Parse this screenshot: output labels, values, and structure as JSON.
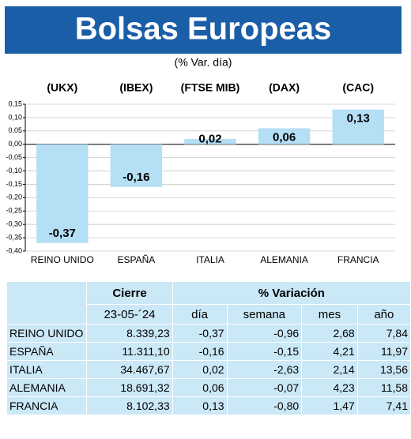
{
  "chart_data": {
    "type": "bar",
    "title": "Bolsas Europeas",
    "subtitle": "(% Var. día)",
    "indices": [
      "(UKX)",
      "(IBEX)",
      "(FTSE MIB)",
      "(DAX)",
      "(CAC)"
    ],
    "categories": [
      "REINO UNIDO",
      "ESPAÑA",
      "ITALIA",
      "ALEMANIA",
      "FRANCIA"
    ],
    "values": [
      -0.37,
      -0.16,
      0.02,
      0.06,
      0.13
    ],
    "value_labels": [
      "-0,37",
      "-0,16",
      "0,02",
      "0,06",
      "0,13"
    ],
    "color": "#b5dff5",
    "ylim": [
      -0.4,
      0.15
    ],
    "yticks": [
      {
        "value": 0.15,
        "label": "0,15"
      },
      {
        "value": 0.1,
        "label": "0,10"
      },
      {
        "value": 0.05,
        "label": "0,05"
      },
      {
        "value": 0,
        "label": "0,00"
      },
      {
        "value": -0.05,
        "label": "-0,05"
      },
      {
        "value": -0.1,
        "label": "-0,10"
      },
      {
        "value": -0.15,
        "label": "-0,15"
      },
      {
        "value": -0.2,
        "label": "-0,20"
      },
      {
        "value": -0.25,
        "label": "-0,25"
      },
      {
        "value": -0.3,
        "label": "-0,30"
      },
      {
        "value": -0.35,
        "label": "-0,35"
      },
      {
        "value": -0.4,
        "label": "-0,40"
      }
    ],
    "grid": true
  },
  "table": {
    "header": [
      "Cierre",
      "% Variación"
    ],
    "subheader": [
      "23-05-´24",
      "día",
      "semana",
      "mes",
      "año"
    ],
    "rows": [
      [
        "REINO UNIDO",
        "8.339,23",
        "-0,37",
        "-0,96",
        "2,68",
        "7,84"
      ],
      [
        "ESPAÑA",
        "11.311,10",
        "-0,16",
        "-0,15",
        "4,21",
        "11,97"
      ],
      [
        "ITALIA",
        "34.467,67",
        "0,02",
        "-2,63",
        "2,14",
        "13,56"
      ],
      [
        "ALEMANIA",
        "18.691,32",
        "0,06",
        "-0,07",
        "4,23",
        "11,58"
      ],
      [
        "FRANCIA",
        "8.102,33",
        "0,13",
        "-0,80",
        "1,47",
        "7,41"
      ]
    ]
  }
}
